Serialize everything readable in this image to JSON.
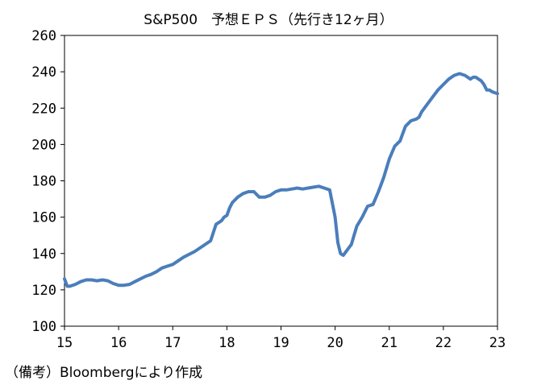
{
  "chart_data": {
    "type": "line",
    "title": "S&P500　予想ＥＰＳ（先行き12ヶ月）",
    "xlabel": "",
    "ylabel": "",
    "x_ticks": [
      "15",
      "16",
      "17",
      "18",
      "19",
      "20",
      "21",
      "22",
      "23"
    ],
    "y_ticks": [
      "100",
      "120",
      "140",
      "160",
      "180",
      "200",
      "220",
      "240",
      "260"
    ],
    "xlim": [
      2015.0,
      2023.0
    ],
    "ylim": [
      100,
      260
    ],
    "grid": false,
    "line_color": "#4a7ebb",
    "series": [
      {
        "x": [
          2015.0,
          2015.05,
          2015.1,
          2015.2,
          2015.3,
          2015.4,
          2015.5,
          2015.6,
          2015.7,
          2015.8,
          2015.9,
          2016.0,
          2016.05,
          2016.1,
          2016.2,
          2016.3,
          2016.4,
          2016.5,
          2016.6,
          2016.7,
          2016.8,
          2016.9,
          2017.0,
          2017.1,
          2017.2,
          2017.3,
          2017.4,
          2017.5,
          2017.6,
          2017.7,
          2017.8,
          2017.9,
          2017.95,
          2018.0,
          2018.05,
          2018.1,
          2018.2,
          2018.3,
          2018.4,
          2018.5,
          2018.6,
          2018.7,
          2018.8,
          2018.9,
          2019.0,
          2019.1,
          2019.2,
          2019.3,
          2019.4,
          2019.5,
          2019.6,
          2019.7,
          2019.8,
          2019.9,
          2020.0,
          2020.05,
          2020.1,
          2020.15,
          2020.2,
          2020.25,
          2020.3,
          2020.35,
          2020.4,
          2020.5,
          2020.6,
          2020.7,
          2020.8,
          2020.85,
          2020.9,
          2021.0,
          2021.1,
          2021.2,
          2021.25,
          2021.3,
          2021.4,
          2021.5,
          2021.55,
          2021.6,
          2021.7,
          2021.8,
          2021.9,
          2022.0,
          2022.1,
          2022.2,
          2022.3,
          2022.4,
          2022.5,
          2022.55,
          2022.6,
          2022.7,
          2022.75,
          2022.8,
          2022.85,
          2022.9,
          2022.95,
          2023.0
        ],
        "values": [
          126,
          122,
          122,
          123,
          124.5,
          125.5,
          125.5,
          125,
          125.5,
          125,
          123.5,
          122.5,
          122.5,
          122.5,
          123,
          124.5,
          126,
          127.5,
          128.5,
          130,
          132,
          133,
          134,
          136,
          138,
          139.5,
          141,
          143,
          145,
          147,
          156,
          158,
          160,
          161,
          165,
          168,
          171,
          173,
          174,
          174,
          171,
          171,
          172,
          174,
          175,
          175,
          175.5,
          176,
          175.5,
          176,
          176.5,
          177,
          176,
          175,
          160,
          146,
          140,
          139,
          141,
          143,
          145,
          150,
          155,
          160,
          166,
          167,
          174,
          178,
          182,
          192,
          199,
          202,
          206,
          210,
          213,
          214,
          215,
          218,
          222,
          226,
          230,
          233,
          236,
          238,
          239,
          238,
          236,
          237,
          237,
          235,
          233,
          230,
          230,
          229,
          228.5,
          228
        ]
      }
    ]
  },
  "note": "（備考）Bloombergにより作成"
}
